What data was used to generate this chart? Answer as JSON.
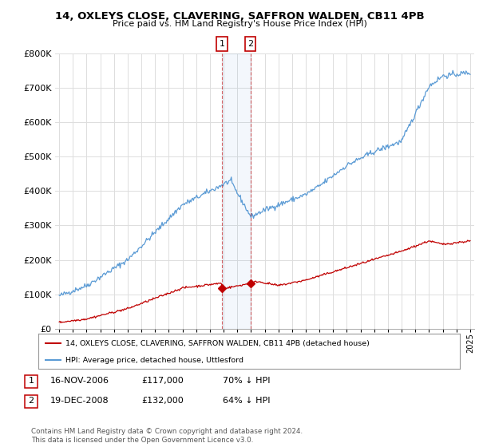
{
  "title": "14, OXLEYS CLOSE, CLAVERING, SAFFRON WALDEN, CB11 4PB",
  "subtitle": "Price paid vs. HM Land Registry's House Price Index (HPI)",
  "ylim": [
    0,
    800000
  ],
  "yticks": [
    0,
    100000,
    200000,
    300000,
    400000,
    500000,
    600000,
    700000,
    800000
  ],
  "ytick_labels": [
    "£0",
    "£100K",
    "£200K",
    "£300K",
    "£400K",
    "£500K",
    "£600K",
    "£700K",
    "£800K"
  ],
  "hpi_color": "#5b9bd5",
  "price_color": "#c00000",
  "sale1_date": 2006.88,
  "sale1_price": 117000,
  "sale1_label": "1",
  "sale2_date": 2008.96,
  "sale2_price": 132000,
  "sale2_label": "2",
  "legend_line1": "14, OXLEYS CLOSE, CLAVERING, SAFFRON WALDEN, CB11 4PB (detached house)",
  "legend_line2": "HPI: Average price, detached house, Uttlesford",
  "table_row1": [
    "1",
    "16-NOV-2006",
    "£117,000",
    "70% ↓ HPI"
  ],
  "table_row2": [
    "2",
    "19-DEC-2008",
    "£132,000",
    "64% ↓ HPI"
  ],
  "footnote": "Contains HM Land Registry data © Crown copyright and database right 2024.\nThis data is licensed under the Open Government Licence v3.0.",
  "background_color": "#ffffff",
  "grid_color": "#dddddd"
}
